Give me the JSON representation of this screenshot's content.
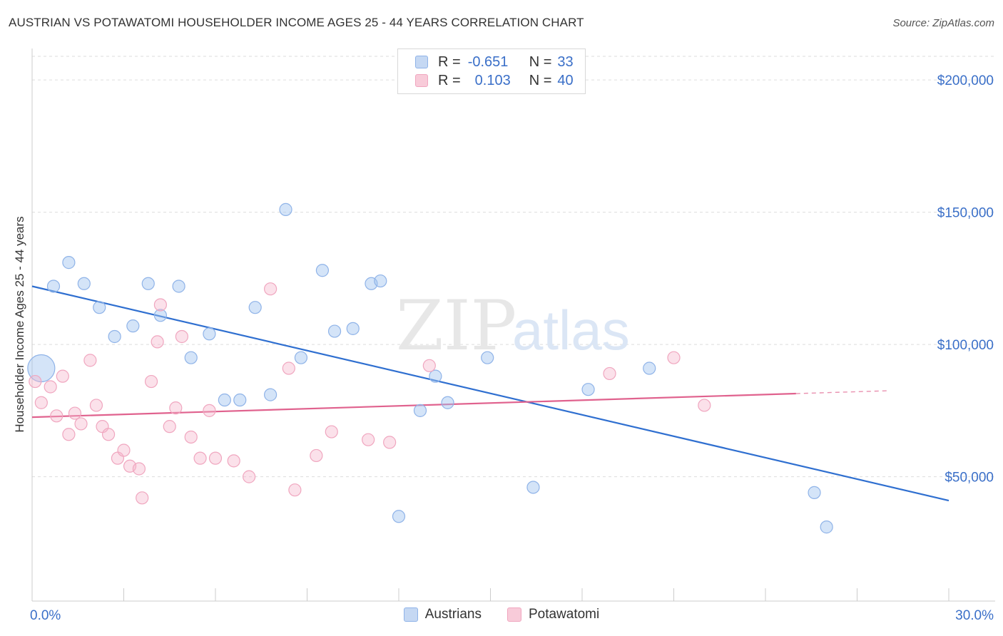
{
  "title": "AUSTRIAN VS POTAWATOMI HOUSEHOLDER INCOME AGES 25 - 44 YEARS CORRELATION CHART",
  "source": "Source: ZipAtlas.com",
  "watermark": {
    "zip": "ZIP",
    "atlas": "atlas"
  },
  "legend_top": [
    {
      "r_label": "R =",
      "r_value": "-0.651",
      "n_label": "N =",
      "n_value": "33",
      "color": "#8fb3e8"
    },
    {
      "r_label": "R =",
      "r_value": "0.103",
      "n_label": "N =",
      "n_value": "40",
      "color": "#f0a6bf"
    }
  ],
  "chart_data": {
    "type": "scatter",
    "title": "AUSTRIAN VS POTAWATOMI HOUSEHOLDER INCOME AGES 25 - 44 YEARS CORRELATION CHART",
    "xlabel": "",
    "ylabel": "Householder Income Ages 25 - 44 years",
    "xlim": [
      0,
      30
    ],
    "ylim": [
      3000,
      210000
    ],
    "x_tick_labels": [
      "0.0%",
      "30.0%"
    ],
    "y_ticks": [
      50000,
      100000,
      150000,
      200000
    ],
    "y_tick_labels": [
      "$50,000",
      "$100,000",
      "$150,000",
      "$200,000"
    ],
    "grid": true,
    "legend_position": "bottom",
    "series": [
      {
        "name": "Austrians",
        "color": "#8fb3e8",
        "line_color": "#2f6fd0",
        "trend": {
          "x": [
            0,
            30
          ],
          "y": [
            122000,
            41000
          ],
          "dash_from": null
        },
        "points": [
          {
            "x": 0.3,
            "y": 91000,
            "large": true
          },
          {
            "x": 0.7,
            "y": 122000
          },
          {
            "x": 1.2,
            "y": 131000
          },
          {
            "x": 1.7,
            "y": 123000
          },
          {
            "x": 2.2,
            "y": 114000
          },
          {
            "x": 2.7,
            "y": 103000
          },
          {
            "x": 3.3,
            "y": 107000
          },
          {
            "x": 3.8,
            "y": 123000
          },
          {
            "x": 4.2,
            "y": 111000
          },
          {
            "x": 4.8,
            "y": 122000
          },
          {
            "x": 5.2,
            "y": 95000
          },
          {
            "x": 5.8,
            "y": 104000
          },
          {
            "x": 6.3,
            "y": 79000
          },
          {
            "x": 6.8,
            "y": 79000
          },
          {
            "x": 7.3,
            "y": 114000
          },
          {
            "x": 7.8,
            "y": 81000
          },
          {
            "x": 8.3,
            "y": 151000
          },
          {
            "x": 8.8,
            "y": 95000
          },
          {
            "x": 9.5,
            "y": 128000
          },
          {
            "x": 9.9,
            "y": 105000
          },
          {
            "x": 10.5,
            "y": 106000
          },
          {
            "x": 11.1,
            "y": 123000
          },
          {
            "x": 11.4,
            "y": 124000
          },
          {
            "x": 12.0,
            "y": 35000
          },
          {
            "x": 12.7,
            "y": 75000
          },
          {
            "x": 13.2,
            "y": 88000
          },
          {
            "x": 13.6,
            "y": 78000
          },
          {
            "x": 14.9,
            "y": 95000
          },
          {
            "x": 16.4,
            "y": 46000
          },
          {
            "x": 18.2,
            "y": 83000
          },
          {
            "x": 20.2,
            "y": 91000
          },
          {
            "x": 25.6,
            "y": 44000
          },
          {
            "x": 26.0,
            "y": 31000
          }
        ]
      },
      {
        "name": "Potawatomi",
        "color": "#f0a6bf",
        "line_color": "#e0628e",
        "trend": {
          "x": [
            0,
            28
          ],
          "y": [
            72500,
            82500
          ],
          "dash_from": 25
        },
        "points": [
          {
            "x": 0.1,
            "y": 86000
          },
          {
            "x": 0.3,
            "y": 78000
          },
          {
            "x": 0.6,
            "y": 84000
          },
          {
            "x": 0.8,
            "y": 73000
          },
          {
            "x": 1.0,
            "y": 88000
          },
          {
            "x": 1.2,
            "y": 66000
          },
          {
            "x": 1.4,
            "y": 74000
          },
          {
            "x": 1.6,
            "y": 70000
          },
          {
            "x": 1.9,
            "y": 94000
          },
          {
            "x": 2.1,
            "y": 77000
          },
          {
            "x": 2.3,
            "y": 69000
          },
          {
            "x": 2.5,
            "y": 66000
          },
          {
            "x": 2.8,
            "y": 57000
          },
          {
            "x": 3.0,
            "y": 60000
          },
          {
            "x": 3.2,
            "y": 54000
          },
          {
            "x": 3.5,
            "y": 53000
          },
          {
            "x": 3.6,
            "y": 42000
          },
          {
            "x": 3.9,
            "y": 86000
          },
          {
            "x": 4.1,
            "y": 101000
          },
          {
            "x": 4.2,
            "y": 115000
          },
          {
            "x": 4.5,
            "y": 69000
          },
          {
            "x": 4.7,
            "y": 76000
          },
          {
            "x": 4.9,
            "y": 103000
          },
          {
            "x": 5.2,
            "y": 65000
          },
          {
            "x": 5.5,
            "y": 57000
          },
          {
            "x": 5.8,
            "y": 75000
          },
          {
            "x": 6.0,
            "y": 57000
          },
          {
            "x": 6.6,
            "y": 56000
          },
          {
            "x": 7.1,
            "y": 50000
          },
          {
            "x": 7.8,
            "y": 121000
          },
          {
            "x": 8.4,
            "y": 91000
          },
          {
            "x": 8.6,
            "y": 45000
          },
          {
            "x": 9.3,
            "y": 58000
          },
          {
            "x": 9.8,
            "y": 67000
          },
          {
            "x": 11.0,
            "y": 64000
          },
          {
            "x": 11.7,
            "y": 63000
          },
          {
            "x": 13.0,
            "y": 92000
          },
          {
            "x": 18.9,
            "y": 89000
          },
          {
            "x": 21.0,
            "y": 95000
          },
          {
            "x": 22.0,
            "y": 77000
          }
        ]
      }
    ]
  }
}
